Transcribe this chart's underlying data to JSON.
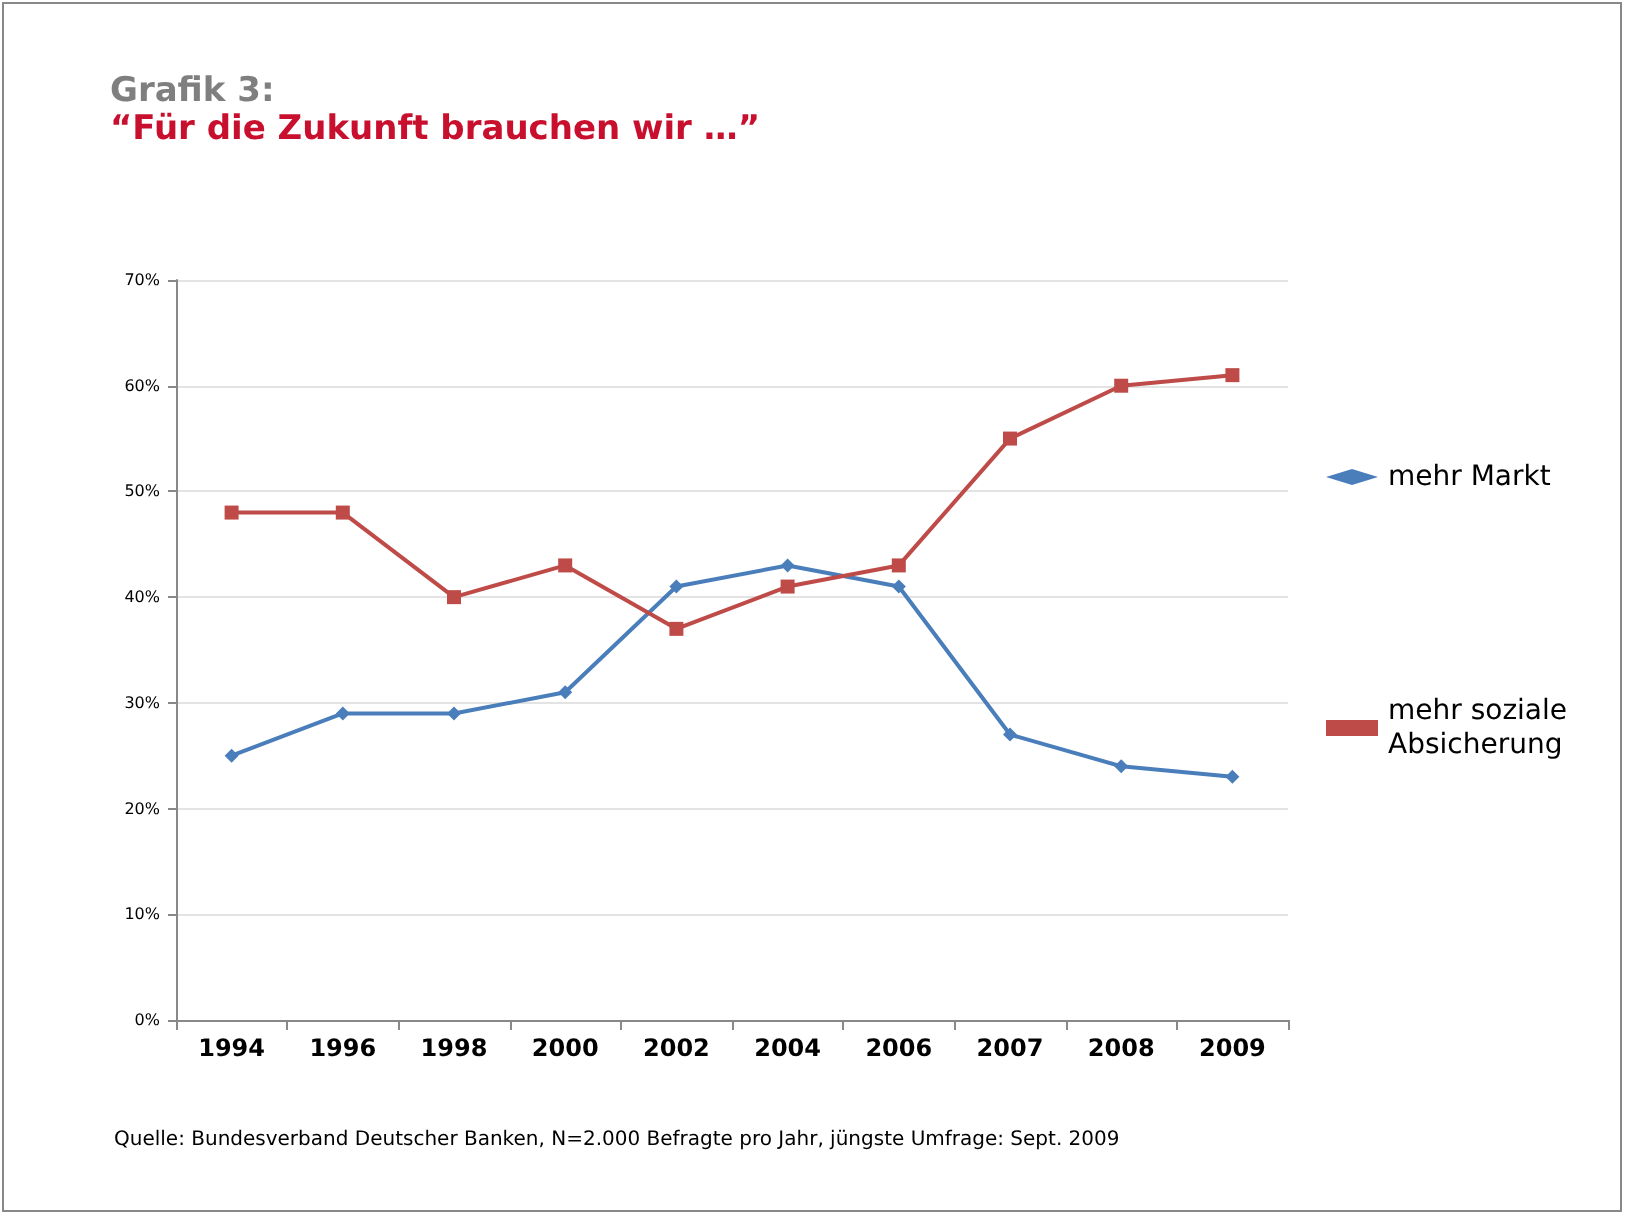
{
  "chart_data": {
    "type": "line",
    "title": "Grafik 3:",
    "subtitle": "“Für die Zukunft brauchen wir …”",
    "categories": [
      "1994",
      "1996",
      "1998",
      "2000",
      "2002",
      "2004",
      "2006",
      "2007",
      "2008",
      "2009"
    ],
    "series": [
      {
        "name": "mehr Markt",
        "color": "#4a7ebb",
        "marker": "diamond",
        "values": [
          25,
          29,
          29,
          31,
          41,
          43,
          41,
          27,
          24,
          23
        ]
      },
      {
        "name": "mehr soziale Absicherung",
        "color": "#be4b48",
        "marker": "square",
        "values": [
          48,
          48,
          40,
          43,
          37,
          41,
          43,
          55,
          60,
          61
        ]
      }
    ],
    "ylim": [
      0,
      70
    ],
    "yticks": [
      {
        "value": 0,
        "label": "0%"
      },
      {
        "value": 10,
        "label": "10%"
      },
      {
        "value": 20,
        "label": "20%"
      },
      {
        "value": 30,
        "label": "30%"
      },
      {
        "value": 40,
        "label": "40%"
      },
      {
        "value": 50,
        "label": "50%"
      },
      {
        "value": 60,
        "label": "60%"
      },
      {
        "value": 70,
        "label": "70%"
      }
    ],
    "grid": "y",
    "legend": "right",
    "line_style": "solid",
    "annotations": [
      "Quelle: Bundesverband Deutscher Banken, N=2.000 Befragte pro Jahr, jüngste Umfrage: Sept. 2009"
    ]
  }
}
